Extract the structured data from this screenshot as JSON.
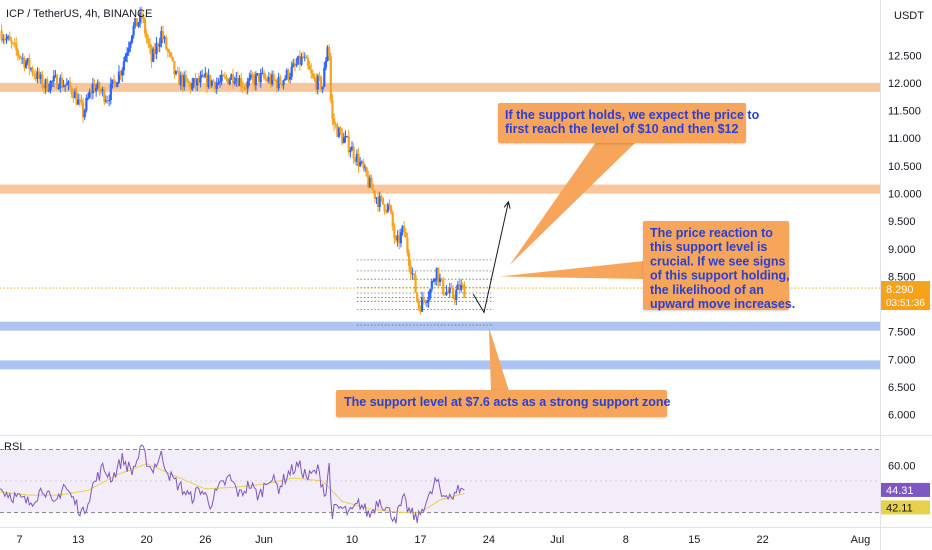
{
  "header": {
    "symbol_line": "ICP / TetherUS, 4h, BINANCE",
    "currency": "USDT"
  },
  "colors": {
    "bull": "#2962ff",
    "bear": "#f7a21b",
    "resistance_zone": "#f7b27a",
    "support_zone": "#8fb0f0",
    "note_bg": "#f7a55a",
    "note_text": "#2a3fd6",
    "rsi_line": "#7e57c2",
    "rsi_ma": "#e6d24a",
    "rsi_band": "#ede7f6",
    "price_tag": "#f7a21b"
  },
  "chart_data": [
    {
      "type": "candlestick",
      "title": "ICP / TetherUS, 4h, BINANCE",
      "ylabel": "USDT",
      "ylim": [
        5.65,
        13.5
      ],
      "y_ticks": [
        "12.500",
        "12.000",
        "11.500",
        "11.000",
        "10.500",
        "10.000",
        "9.500",
        "9.000",
        "8.500",
        "8.000",
        "7.500",
        "7.000",
        "6.500",
        "6.000"
      ],
      "y_tick_values": [
        12.5,
        12.0,
        11.5,
        11.0,
        10.5,
        10.0,
        9.5,
        9.0,
        8.5,
        8.0,
        7.5,
        7.0,
        6.5,
        6.0
      ],
      "x_ticks": [
        "7",
        "13",
        "20",
        "26",
        "Jun",
        "10",
        "17",
        "24",
        "Jul",
        "8",
        "15",
        "22",
        "Aug"
      ],
      "x_tick_days": [
        7,
        13,
        20,
        26,
        32,
        41,
        48,
        55,
        62,
        69,
        76,
        83,
        93
      ],
      "x_domain_days": [
        5,
        95
      ],
      "bar_hours": 4,
      "last_candle_day": 52.5,
      "price_path": [
        [
          5.0,
          12.95
        ],
        [
          6.5,
          12.6
        ],
        [
          8.0,
          12.3
        ],
        [
          9.5,
          11.95
        ],
        [
          11.0,
          12.05
        ],
        [
          12.5,
          11.85
        ],
        [
          13.5,
          11.45
        ],
        [
          14.5,
          11.95
        ],
        [
          16.0,
          11.75
        ],
        [
          17.5,
          12.3
        ],
        [
          18.5,
          12.95
        ],
        [
          19.5,
          13.2
        ],
        [
          20.5,
          12.4
        ],
        [
          21.5,
          12.9
        ],
        [
          23.0,
          12.1
        ],
        [
          24.5,
          11.95
        ],
        [
          26.0,
          12.05
        ],
        [
          27.5,
          12.0
        ],
        [
          29.0,
          12.15
        ],
        [
          30.0,
          11.95
        ],
        [
          31.5,
          12.1
        ],
        [
          33.5,
          12.0
        ],
        [
          35.0,
          12.25
        ],
        [
          36.0,
          12.45
        ],
        [
          37.0,
          12.05
        ],
        [
          38.0,
          11.95
        ],
        [
          38.6,
          12.85
        ],
        [
          38.9,
          11.35
        ],
        [
          39.8,
          11.05
        ],
        [
          40.8,
          10.85
        ],
        [
          41.8,
          10.55
        ],
        [
          42.8,
          10.15
        ],
        [
          43.8,
          9.85
        ],
        [
          44.8,
          9.75
        ],
        [
          45.5,
          9.05
        ],
        [
          46.3,
          9.35
        ],
        [
          46.8,
          8.85
        ],
        [
          47.4,
          8.35
        ],
        [
          47.8,
          7.95
        ],
        [
          48.4,
          8.1
        ],
        [
          49.0,
          8.25
        ],
        [
          49.6,
          8.65
        ],
        [
          50.2,
          8.3
        ],
        [
          50.8,
          8.2
        ],
        [
          51.4,
          8.15
        ],
        [
          52.0,
          8.3
        ],
        [
          52.5,
          8.25
        ]
      ],
      "zones": [
        {
          "kind": "resistance",
          "value": 11.92
        },
        {
          "kind": "resistance",
          "value": 10.08
        },
        {
          "kind": "support",
          "value": 7.6
        },
        {
          "kind": "support",
          "value": 6.9
        }
      ],
      "dotted_levels": {
        "day_start": 41.5,
        "day_end": 55.5,
        "values": [
          8.8,
          8.6,
          8.45,
          8.3,
          8.2,
          8.12,
          8.05,
          7.9,
          7.62
        ]
      },
      "current_price": {
        "value": 8.29,
        "label": "8.290",
        "countdown": "03:51:36"
      },
      "projection": [
        [
          53.4,
          8.18
        ],
        [
          54.5,
          7.85
        ],
        [
          57.0,
          9.85
        ]
      ],
      "annotations": [
        {
          "lines": [
            "If the support holds, we expect the price to",
            "first reach the level of $10 and then $12"
          ],
          "pointer_to": [
            57.1,
            8.7
          ]
        },
        {
          "lines": [
            "The price reaction to",
            "this support level is",
            "crucial. If we see signs",
            "of this support holding,",
            "the likelihood of an",
            "upward move increases."
          ],
          "pointer_to": [
            56.2,
            8.5
          ]
        },
        {
          "lines": [
            "The support level at $7.6 acts as a strong support zone"
          ],
          "pointer_to": [
            55.0,
            7.58
          ]
        }
      ]
    },
    {
      "type": "line",
      "title": "RSI",
      "ylim": [
        22,
        78
      ],
      "y_ticks": [
        "60.00"
      ],
      "band": [
        30,
        70
      ],
      "values_labels": {
        "rsi": "44.31",
        "ma": "42.11"
      },
      "rsi_value": 44.31,
      "ma_value": 42.11,
      "rsi_path": [
        [
          5.0,
          45
        ],
        [
          6.5,
          40
        ],
        [
          8.0,
          36
        ],
        [
          9.5,
          46
        ],
        [
          10.5,
          33
        ],
        [
          11.5,
          48
        ],
        [
          12.5,
          38
        ],
        [
          13.5,
          29
        ],
        [
          14.5,
          47
        ],
        [
          15.5,
          58
        ],
        [
          16.5,
          52
        ],
        [
          17.5,
          64
        ],
        [
          18.5,
          56
        ],
        [
          19.5,
          70
        ],
        [
          20.5,
          57
        ],
        [
          21.5,
          66
        ],
        [
          22.5,
          52
        ],
        [
          23.5,
          46
        ],
        [
          24.5,
          39
        ],
        [
          25.5,
          45
        ],
        [
          26.5,
          36
        ],
        [
          27.5,
          46
        ],
        [
          28.5,
          52
        ],
        [
          29.5,
          41
        ],
        [
          30.5,
          48
        ],
        [
          31.5,
          40
        ],
        [
          32.5,
          53
        ],
        [
          33.5,
          46
        ],
        [
          34.5,
          55
        ],
        [
          35.5,
          60
        ],
        [
          36.5,
          52
        ],
        [
          37.5,
          57
        ],
        [
          38.4,
          40
        ],
        [
          38.6,
          68
        ],
        [
          38.9,
          30
        ],
        [
          39.8,
          33
        ],
        [
          40.8,
          29
        ],
        [
          41.8,
          36
        ],
        [
          42.8,
          28
        ],
        [
          43.8,
          39
        ],
        [
          44.8,
          30
        ],
        [
          45.5,
          27
        ],
        [
          46.3,
          38
        ],
        [
          46.8,
          31
        ],
        [
          47.4,
          27
        ],
        [
          47.8,
          26
        ],
        [
          48.4,
          36
        ],
        [
          49.0,
          40
        ],
        [
          49.6,
          51
        ],
        [
          50.2,
          40
        ],
        [
          50.8,
          43
        ],
        [
          51.4,
          39
        ],
        [
          52.0,
          46
        ],
        [
          52.5,
          44.31
        ]
      ],
      "ma_path": [
        [
          5.0,
          43
        ],
        [
          8.0,
          41
        ],
        [
          11.0,
          41
        ],
        [
          14.0,
          44
        ],
        [
          17.0,
          54
        ],
        [
          20.0,
          61
        ],
        [
          23.0,
          53
        ],
        [
          26.0,
          45
        ],
        [
          29.0,
          46
        ],
        [
          32.0,
          48
        ],
        [
          35.0,
          52
        ],
        [
          38.0,
          50
        ],
        [
          40.0,
          37
        ],
        [
          43.0,
          32
        ],
        [
          46.0,
          30
        ],
        [
          48.0,
          30
        ],
        [
          50.0,
          38
        ],
        [
          52.5,
          42.11
        ]
      ]
    }
  ]
}
